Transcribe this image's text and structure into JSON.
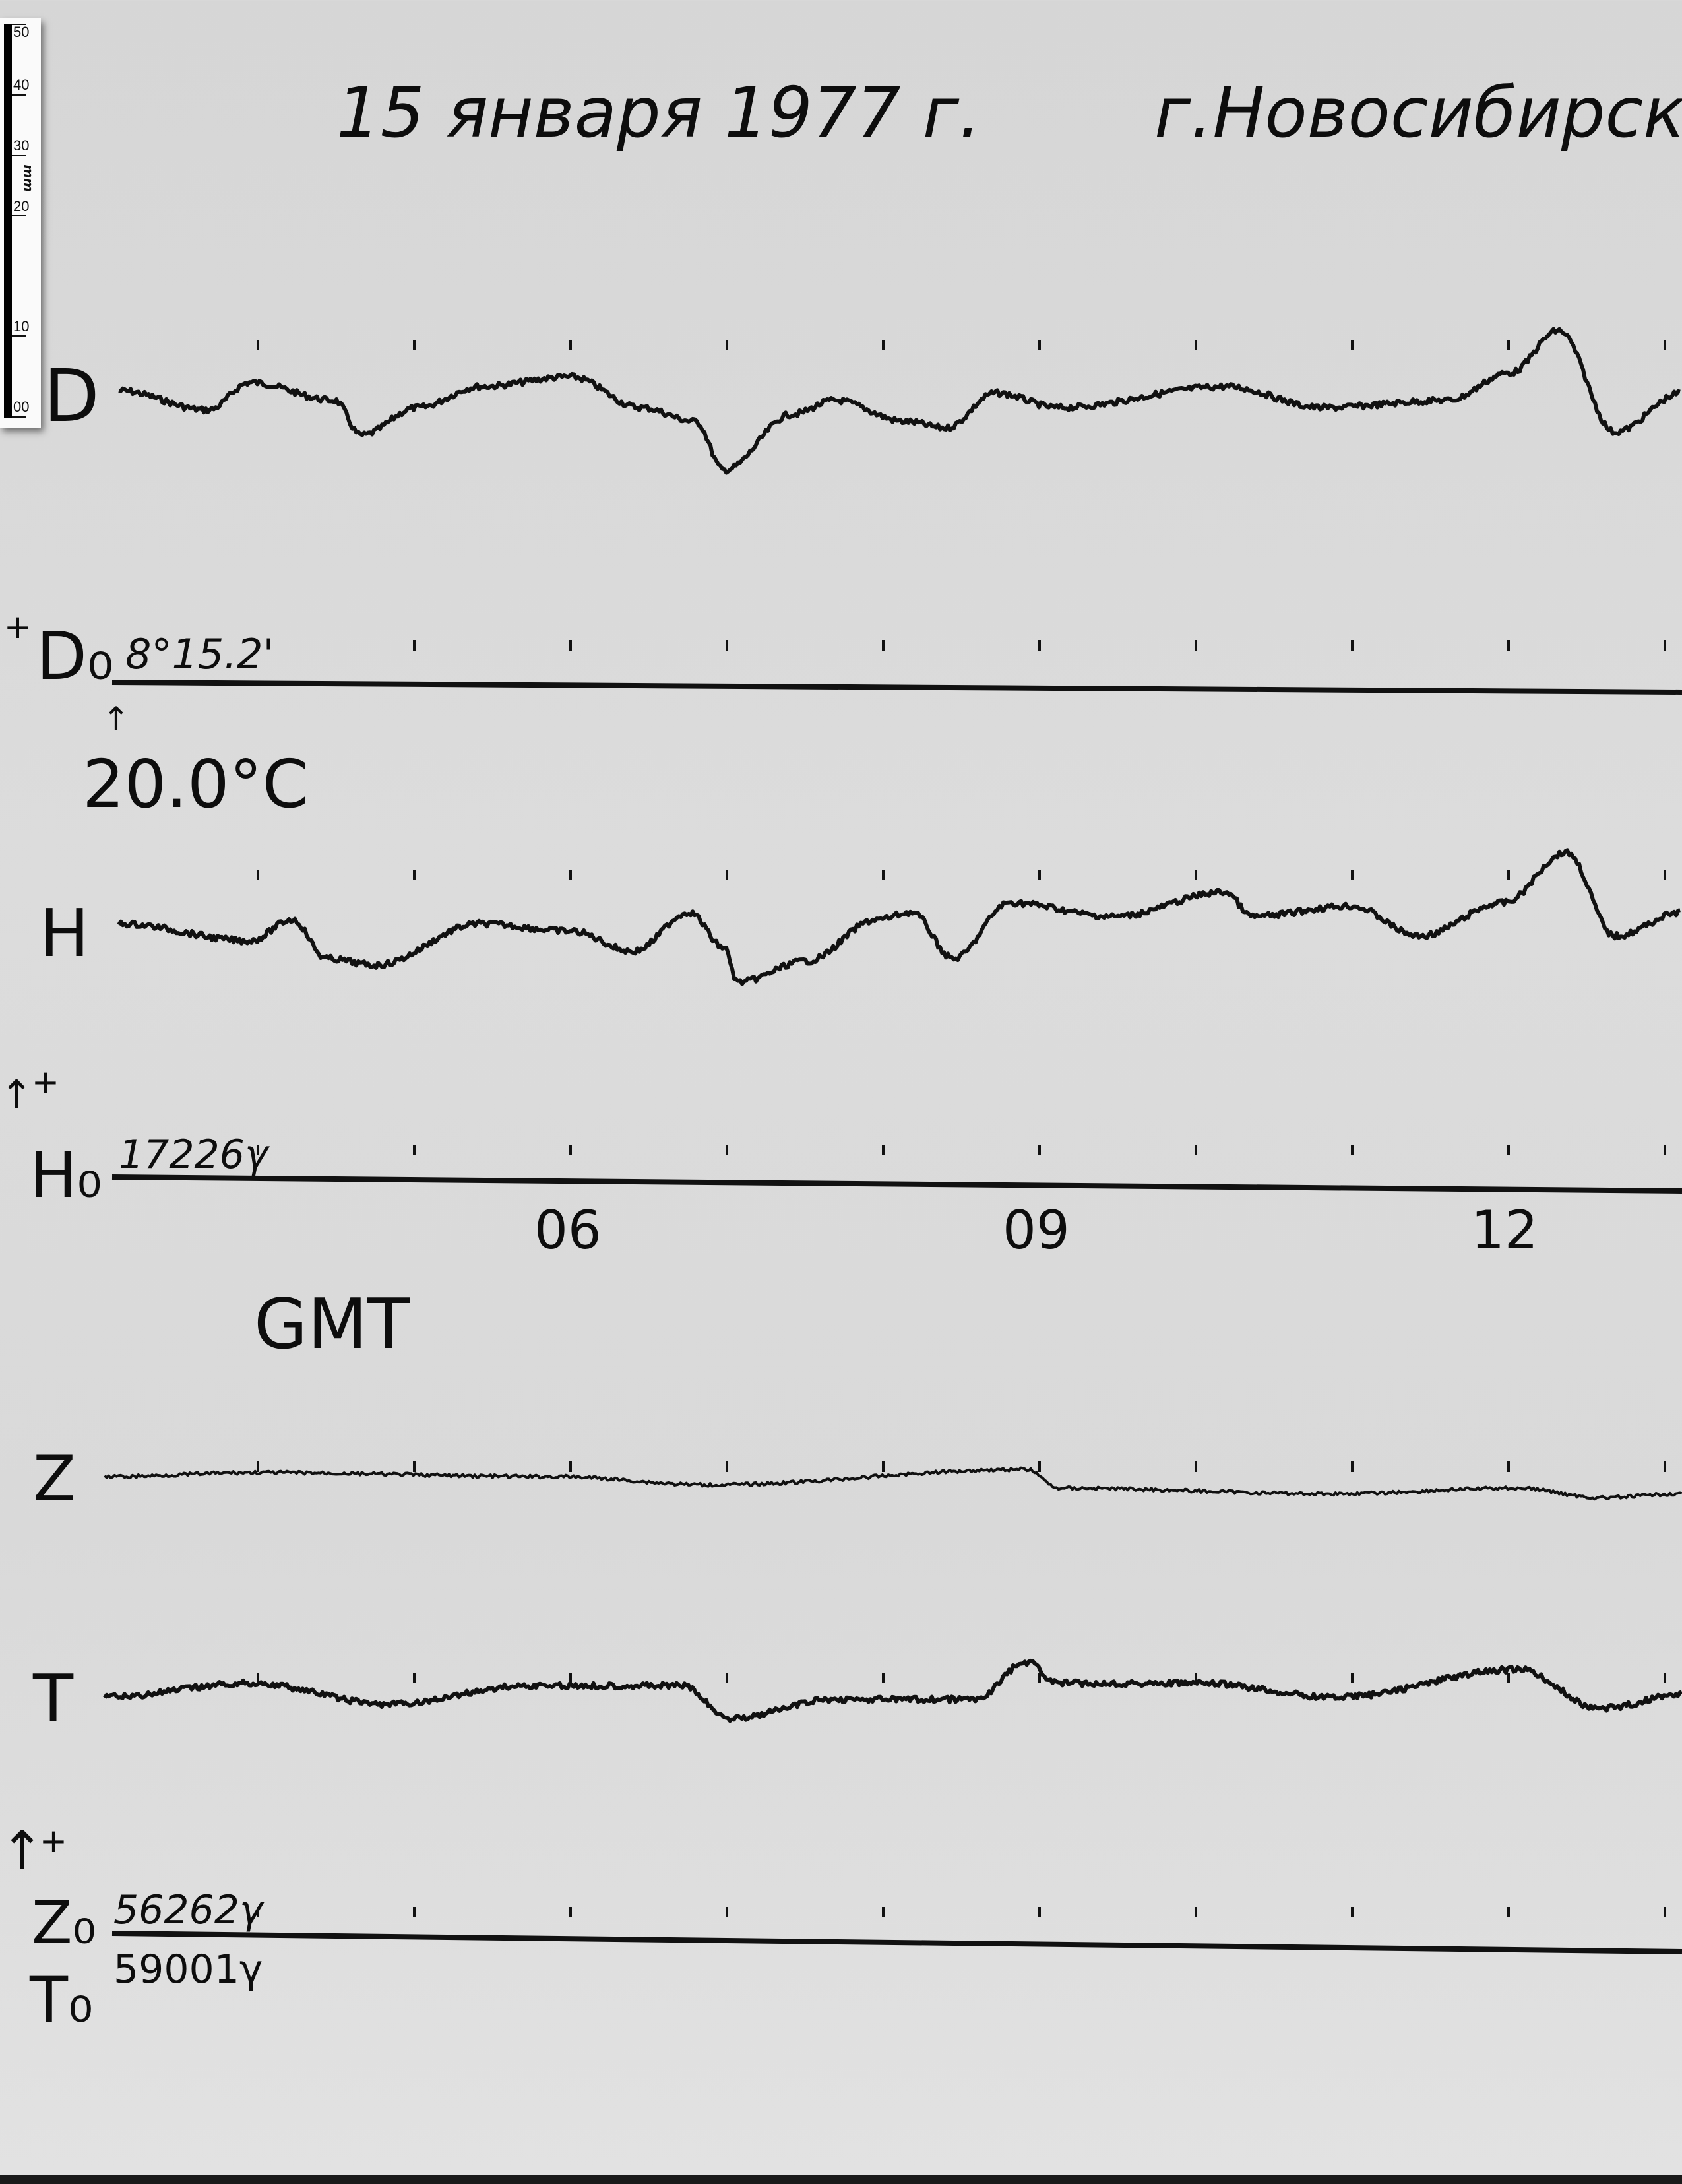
{
  "title": {
    "date": "15 января 1977 г.",
    "place": "г.Новосибирск"
  },
  "ruler": {
    "unit": "mm",
    "ticks": [
      "50",
      "40",
      "30",
      "20",
      "10",
      "00"
    ]
  },
  "labels": {
    "D": "D",
    "H": "H",
    "Z": "Z",
    "T": "T",
    "D0": "D₀",
    "H0": "H₀",
    "Z0": "Z₀",
    "T0": "T₀",
    "D0_value": "8°15.2'",
    "temperature": "20.0°C",
    "H0_value": "17226γ",
    "Z0_value": "56262γ",
    "T0_value": "59001γ",
    "plus": "+",
    "time_axis": "GMT"
  },
  "chart_data": {
    "type": "line",
    "title": "15 января 1977 г.  г.Новосибирск",
    "xlabel": "GMT",
    "ylabel": "",
    "x_unit": "hours GMT",
    "y_unit": "mm deflection (approx., relative to trace start)",
    "xlim": [
      3.0,
      13.1
    ],
    "x_tick_labels": [
      {
        "hour": 6,
        "label": "06"
      },
      {
        "hour": 9,
        "label": "09"
      },
      {
        "hour": 12,
        "label": "12"
      }
    ],
    "hour_marks": [
      4,
      5,
      6,
      7,
      8,
      9,
      10,
      11,
      12,
      13
    ],
    "grid": false,
    "colors": {
      "trace": "#111111",
      "paper": "#d9d9d9"
    },
    "series": [
      {
        "name": "D",
        "x": [
          3.11,
          3.68,
          3.95,
          4.49,
          4.66,
          5.02,
          5.42,
          6.0,
          6.45,
          6.8,
          6.98,
          7.42,
          7.69,
          8.14,
          8.4,
          8.72,
          9.12,
          10.19,
          10.81,
          11.61,
          12.01,
          12.32,
          12.68,
          13.11
        ],
        "y": [
          0,
          -2.4,
          1.0,
          -1.2,
          -5.5,
          -2.1,
          0.5,
          1.7,
          -2.1,
          -3.8,
          -9.8,
          -2.9,
          -1.2,
          -3.8,
          -4.6,
          -0.3,
          -2.1,
          0.5,
          -2.1,
          -1.2,
          2.2,
          7.4,
          -5.1,
          -0.3
        ]
      },
      {
        "name": "H",
        "x": [
          3.11,
          3.95,
          4.22,
          4.44,
          4.75,
          5.42,
          6.0,
          6.4,
          6.76,
          6.98,
          7.07,
          7.51,
          7.96,
          8.18,
          8.45,
          8.81,
          9.47,
          10.19,
          10.36,
          10.99,
          11.43,
          11.97,
          12.37,
          12.68,
          13.11
        ],
        "y": [
          0,
          -2.1,
          0.5,
          -4.3,
          -5.1,
          0,
          -0.9,
          -3.4,
          1.4,
          -2.9,
          -7.2,
          -4.6,
          0.5,
          1.4,
          -4.3,
          2.6,
          0.9,
          3.9,
          0.9,
          2.2,
          -1.5,
          2.6,
          8.8,
          -1.5,
          1.4
        ]
      },
      {
        "name": "Z",
        "x": [
          3.02,
          4.0,
          5.91,
          6.89,
          8.92,
          9.12,
          10.9,
          12.06,
          12.59,
          13.11
        ],
        "y": [
          0,
          0.5,
          0,
          -1.0,
          0.9,
          -1.4,
          -2.1,
          -1.4,
          -2.6,
          -2.1
        ]
      },
      {
        "name": "T",
        "x": [
          3.02,
          3.95,
          4.84,
          5.73,
          6.71,
          7.02,
          7.69,
          8.58,
          8.92,
          9.12,
          10.01,
          10.9,
          12.06,
          12.59,
          13.11
        ],
        "y": [
          0,
          1.7,
          -0.9,
          1.4,
          1.4,
          -2.6,
          -0.3,
          -0.3,
          4.3,
          1.7,
          1.7,
          0,
          3.4,
          -1.4,
          0.3
        ]
      }
    ]
  }
}
